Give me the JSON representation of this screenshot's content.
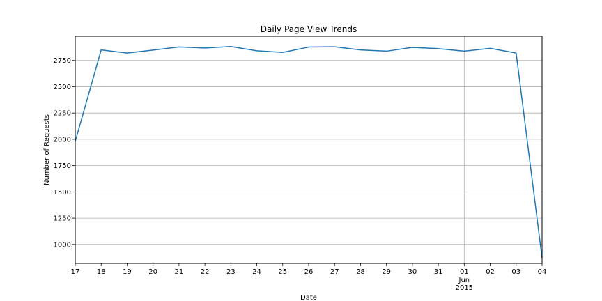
{
  "chart_data": {
    "type": "line",
    "title": "Daily Page View Trends",
    "xlabel": "Date",
    "ylabel": "Number of Requests",
    "x": [
      "2015-05-17",
      "2015-05-18",
      "2015-05-19",
      "2015-05-20",
      "2015-05-21",
      "2015-05-22",
      "2015-05-23",
      "2015-05-24",
      "2015-05-25",
      "2015-05-26",
      "2015-05-27",
      "2015-05-28",
      "2015-05-29",
      "2015-05-30",
      "2015-05-31",
      "2015-06-01",
      "2015-06-02",
      "2015-06-03",
      "2015-06-04"
    ],
    "series": [
      {
        "values": [
          1980,
          2850,
          2820,
          2848,
          2878,
          2868,
          2882,
          2842,
          2826,
          2877,
          2880,
          2850,
          2838,
          2874,
          2862,
          2838,
          2865,
          2820,
          870
        ],
        "color": "#1f77b4"
      }
    ],
    "x_tick_labels": [
      "17",
      "18",
      "19",
      "20",
      "21",
      "22",
      "23",
      "24",
      "25",
      "26",
      "27",
      "28",
      "29",
      "30",
      "31",
      "01",
      "02",
      "03",
      "04"
    ],
    "x_tick_sublabel": {
      "index": 15,
      "month": "Jun",
      "year": "2015"
    },
    "ylim": [
      820,
      2980
    ],
    "yticks": [
      1000,
      1250,
      1500,
      1750,
      2000,
      2250,
      2500,
      2750
    ],
    "grid": {
      "y": true,
      "x_major_only": true
    },
    "legend": "none"
  }
}
